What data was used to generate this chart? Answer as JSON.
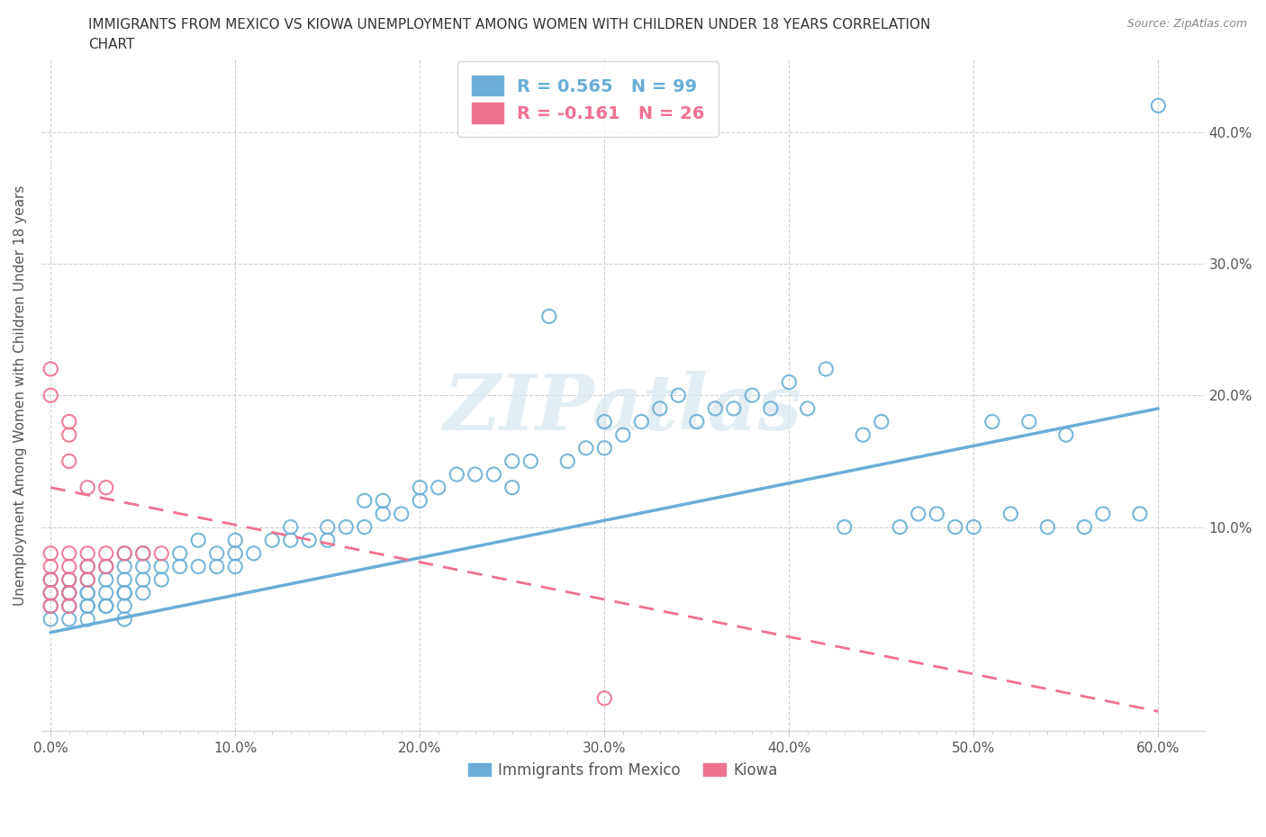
{
  "title_line1": "IMMIGRANTS FROM MEXICO VS KIOWA UNEMPLOYMENT AMONG WOMEN WITH CHILDREN UNDER 18 YEARS CORRELATION",
  "title_line2": "CHART",
  "source": "Source: ZipAtlas.com",
  "ylabel": "Unemployment Among Women with Children Under 18 years",
  "xlim": [
    -0.005,
    0.625
  ],
  "ylim": [
    -0.055,
    0.455
  ],
  "xtick_labels": [
    "0.0%",
    "",
    "",
    "",
    "",
    "",
    "",
    "",
    "",
    "",
    "10.0%",
    "",
    "",
    "",
    "",
    "",
    "",
    "",
    "",
    "",
    "20.0%",
    "",
    "",
    "",
    "",
    "",
    "",
    "",
    "",
    "",
    "30.0%",
    "",
    "",
    "",
    "",
    "",
    "",
    "",
    "",
    "",
    "40.0%",
    "",
    "",
    "",
    "",
    "",
    "",
    "",
    "",
    "",
    "50.0%",
    "",
    "",
    "",
    "",
    "",
    "",
    "",
    "",
    "",
    "60.0%"
  ],
  "xtick_vals": [
    0.0,
    0.01,
    0.02,
    0.03,
    0.04,
    0.05,
    0.06,
    0.07,
    0.08,
    0.09,
    0.1,
    0.11,
    0.12,
    0.13,
    0.14,
    0.15,
    0.16,
    0.17,
    0.18,
    0.19,
    0.2,
    0.21,
    0.22,
    0.23,
    0.24,
    0.25,
    0.26,
    0.27,
    0.28,
    0.29,
    0.3,
    0.31,
    0.32,
    0.33,
    0.34,
    0.35,
    0.36,
    0.37,
    0.38,
    0.39,
    0.4,
    0.41,
    0.42,
    0.43,
    0.44,
    0.45,
    0.46,
    0.47,
    0.48,
    0.49,
    0.5,
    0.51,
    0.52,
    0.53,
    0.54,
    0.55,
    0.56,
    0.57,
    0.58,
    0.59,
    0.6
  ],
  "ytick_vals": [
    0.1,
    0.2,
    0.3,
    0.4
  ],
  "ytick_labels": [
    "10.0%",
    "20.0%",
    "30.0%",
    "40.0%"
  ],
  "mexico_color": "#6aaed6",
  "kiowa_color": "#f07090",
  "mexico_scatter_x": [
    0.0,
    0.0,
    0.0,
    0.0,
    0.01,
    0.01,
    0.01,
    0.01,
    0.01,
    0.02,
    0.02,
    0.02,
    0.02,
    0.02,
    0.02,
    0.02,
    0.03,
    0.03,
    0.03,
    0.03,
    0.03,
    0.04,
    0.04,
    0.04,
    0.04,
    0.04,
    0.04,
    0.04,
    0.05,
    0.05,
    0.05,
    0.05,
    0.06,
    0.06,
    0.07,
    0.07,
    0.08,
    0.08,
    0.09,
    0.09,
    0.1,
    0.1,
    0.1,
    0.11,
    0.12,
    0.13,
    0.13,
    0.14,
    0.15,
    0.15,
    0.16,
    0.17,
    0.17,
    0.18,
    0.18,
    0.19,
    0.2,
    0.2,
    0.21,
    0.22,
    0.23,
    0.24,
    0.25,
    0.25,
    0.26,
    0.27,
    0.28,
    0.29,
    0.3,
    0.3,
    0.31,
    0.32,
    0.33,
    0.34,
    0.35,
    0.36,
    0.37,
    0.38,
    0.39,
    0.4,
    0.41,
    0.42,
    0.43,
    0.44,
    0.45,
    0.46,
    0.47,
    0.48,
    0.49,
    0.5,
    0.51,
    0.52,
    0.53,
    0.54,
    0.55,
    0.56,
    0.57,
    0.59,
    0.6
  ],
  "mexico_scatter_y": [
    0.03,
    0.04,
    0.05,
    0.06,
    0.03,
    0.04,
    0.05,
    0.05,
    0.06,
    0.03,
    0.04,
    0.04,
    0.05,
    0.05,
    0.06,
    0.07,
    0.04,
    0.04,
    0.05,
    0.06,
    0.07,
    0.03,
    0.04,
    0.05,
    0.05,
    0.06,
    0.07,
    0.08,
    0.05,
    0.06,
    0.07,
    0.08,
    0.06,
    0.07,
    0.07,
    0.08,
    0.07,
    0.09,
    0.07,
    0.08,
    0.07,
    0.08,
    0.09,
    0.08,
    0.09,
    0.09,
    0.1,
    0.09,
    0.09,
    0.1,
    0.1,
    0.1,
    0.12,
    0.11,
    0.12,
    0.11,
    0.12,
    0.13,
    0.13,
    0.14,
    0.14,
    0.14,
    0.13,
    0.15,
    0.15,
    0.26,
    0.15,
    0.16,
    0.16,
    0.18,
    0.17,
    0.18,
    0.19,
    0.2,
    0.18,
    0.19,
    0.19,
    0.2,
    0.19,
    0.21,
    0.19,
    0.22,
    0.1,
    0.17,
    0.18,
    0.1,
    0.11,
    0.11,
    0.1,
    0.1,
    0.18,
    0.11,
    0.18,
    0.1,
    0.17,
    0.1,
    0.11,
    0.11,
    0.42
  ],
  "kiowa_scatter_x": [
    0.0,
    0.0,
    0.0,
    0.0,
    0.0,
    0.0,
    0.0,
    0.01,
    0.01,
    0.01,
    0.01,
    0.01,
    0.01,
    0.01,
    0.01,
    0.02,
    0.02,
    0.02,
    0.02,
    0.03,
    0.03,
    0.03,
    0.04,
    0.05,
    0.06,
    0.3
  ],
  "kiowa_scatter_y": [
    0.04,
    0.05,
    0.06,
    0.07,
    0.08,
    0.2,
    0.22,
    0.04,
    0.05,
    0.06,
    0.07,
    0.08,
    0.15,
    0.17,
    0.18,
    0.06,
    0.07,
    0.08,
    0.13,
    0.07,
    0.08,
    0.13,
    0.08,
    0.08,
    0.08,
    -0.03
  ],
  "mexico_trend_x": [
    0.0,
    0.6
  ],
  "mexico_trend_y": [
    0.02,
    0.19
  ],
  "kiowa_trend_x": [
    0.0,
    0.6
  ],
  "kiowa_trend_y": [
    0.13,
    -0.04
  ],
  "mexico_R": 0.565,
  "mexico_N": 99,
  "kiowa_R": -0.161,
  "kiowa_N": 26,
  "watermark_text": "ZIPatlas",
  "background_color": "#ffffff",
  "grid_color": "#d0d0d0",
  "title_color": "#333333",
  "source_color": "#888888",
  "tick_color": "#555555",
  "legend1_label": "Immigrants from Mexico",
  "legend2_label": "Kiowa"
}
